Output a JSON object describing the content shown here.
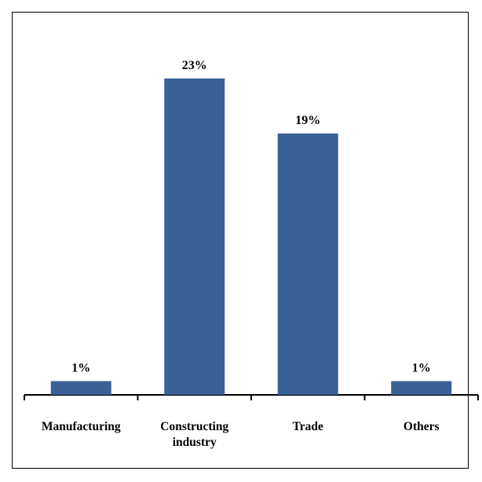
{
  "chart_data": {
    "type": "bar",
    "categories": [
      "Manufacturing",
      "Constructing industry",
      "Trade",
      "Others"
    ],
    "category_lines": [
      [
        "Manufacturing"
      ],
      [
        "Constructing",
        "industry"
      ],
      [
        "Trade"
      ],
      [
        "Others"
      ]
    ],
    "values": [
      1,
      23,
      19,
      1
    ],
    "data_labels": [
      "1%",
      "23%",
      "19%",
      "1%"
    ],
    "unit": "%",
    "ylim": [
      0,
      23
    ],
    "grid": false,
    "legend": "none",
    "bar_color": "#3A6195"
  }
}
